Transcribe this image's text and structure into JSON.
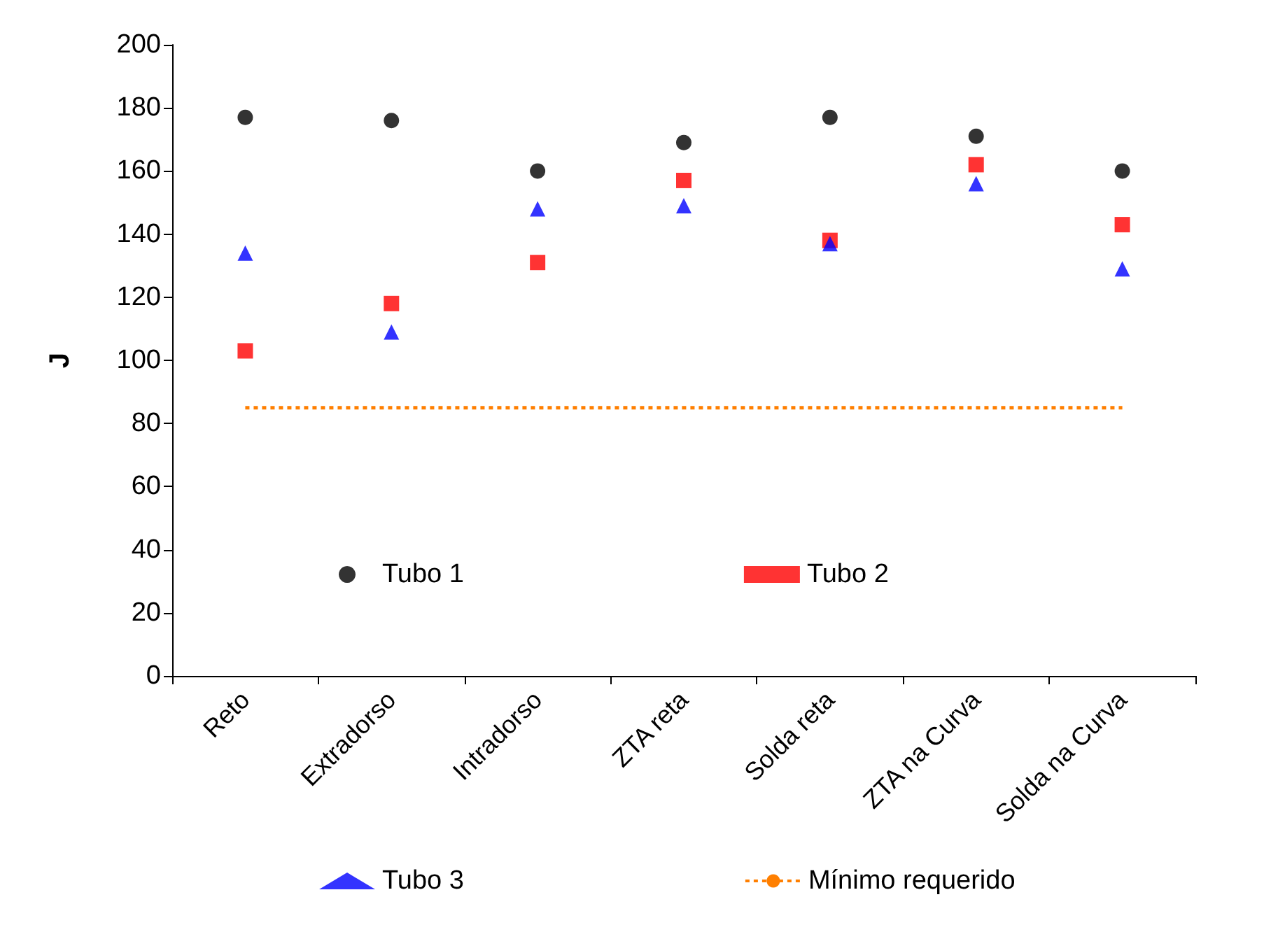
{
  "chart_data": {
    "type": "scatter",
    "ylabel": "J",
    "categories": [
      "Reto",
      "Extradorso",
      "Intradorso",
      "ZTA reta",
      "Solda reta",
      "ZTA na Curva",
      "Solda na Curva"
    ],
    "series": [
      {
        "name": "Tubo 1",
        "color": "#000000",
        "marker": "circle",
        "values": [
          177,
          176,
          160,
          169,
          177,
          171,
          160
        ]
      },
      {
        "name": "Tubo 2",
        "color": "#ff0000",
        "marker": "square",
        "values": [
          103,
          118,
          131,
          157,
          138,
          162,
          143
        ]
      },
      {
        "name": "Tubo 3",
        "color": "#0000ff",
        "marker": "triangle",
        "values": [
          134,
          109,
          148,
          149,
          137,
          156,
          129
        ]
      }
    ],
    "ref_lines": [
      {
        "axis": "y",
        "value": 85,
        "label": "Mínimo requerido",
        "color": "#ff7f00",
        "line_style": "dotted"
      }
    ],
    "ylim": [
      0,
      200
    ],
    "yticks": [
      0,
      20,
      40,
      60,
      80,
      100,
      120,
      140,
      160,
      180,
      200
    ],
    "grid": false,
    "legend": "bottom"
  }
}
